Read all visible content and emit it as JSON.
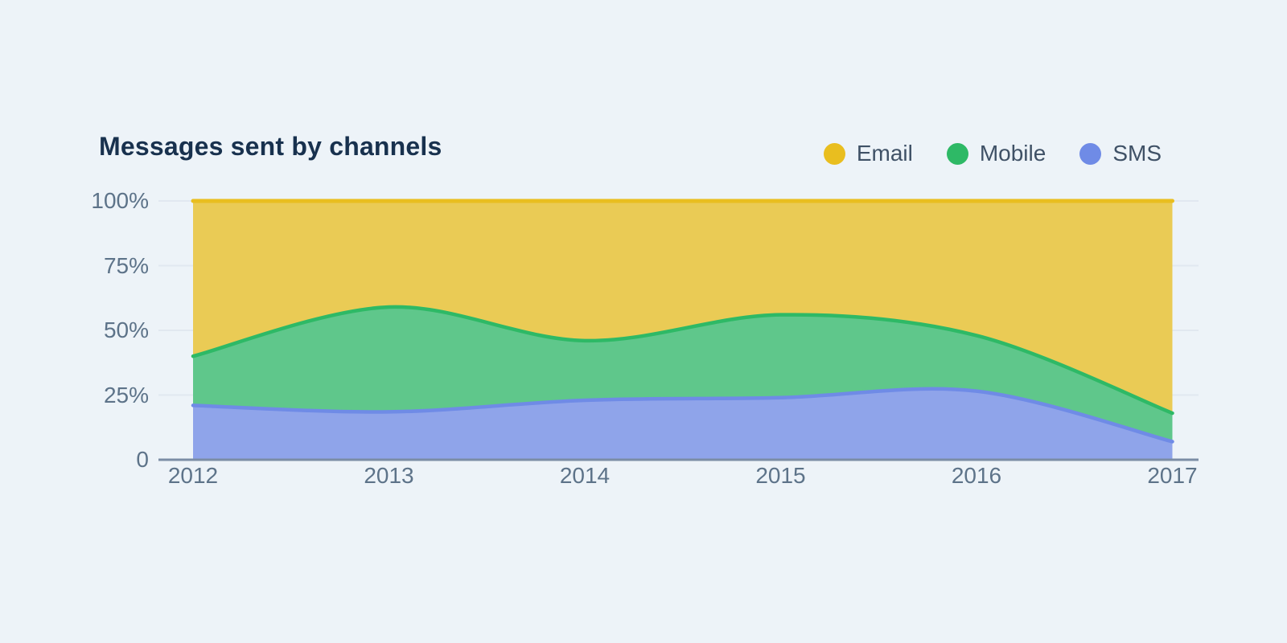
{
  "page": {
    "background": "#EDF3F8"
  },
  "header": {
    "title": "Messages sent by channels",
    "title_color": "#18314E"
  },
  "legend": {
    "position": "top-right",
    "items": [
      {
        "label": "Email",
        "color": "#E9BE1F"
      },
      {
        "label": "Mobile",
        "color": "#2EB966"
      },
      {
        "label": "SMS",
        "color": "#6F8BE6"
      }
    ]
  },
  "chart_data": {
    "type": "area",
    "stacked": true,
    "stack_mode": "100%",
    "curve": "smooth",
    "title": "Messages sent by channels",
    "xlabel": "",
    "ylabel": "",
    "x_categories": [
      "2012",
      "2013",
      "2014",
      "2015",
      "2016",
      "2017"
    ],
    "series": [
      {
        "name": "Email",
        "color": "#E9BE1F",
        "fill": "#EACB55",
        "values": [
          60,
          41,
          54,
          44,
          52,
          82
        ]
      },
      {
        "name": "Mobile",
        "color": "#2EB966",
        "fill": "#5FC78B",
        "values": [
          19,
          40.5,
          23,
          32,
          21.5,
          11
        ]
      },
      {
        "name": "SMS",
        "color": "#6F8BE6",
        "fill": "#8FA4EA",
        "values": [
          21,
          18.5,
          23,
          24,
          26.5,
          7
        ]
      }
    ],
    "ylim": [
      0,
      100
    ],
    "y_ticks": [
      {
        "pct": 100,
        "label": "100%"
      },
      {
        "pct": 75,
        "label": "75%"
      },
      {
        "pct": 50,
        "label": "50%"
      },
      {
        "pct": 25,
        "label": "25%"
      },
      {
        "pct": 0,
        "label": "0"
      }
    ],
    "grid": "horizontal",
    "grid_color": "#E1E8F0",
    "axis_line_color": "#7B8DA5",
    "axis_label_color": "#5D7389",
    "legend_position": "top-right"
  }
}
